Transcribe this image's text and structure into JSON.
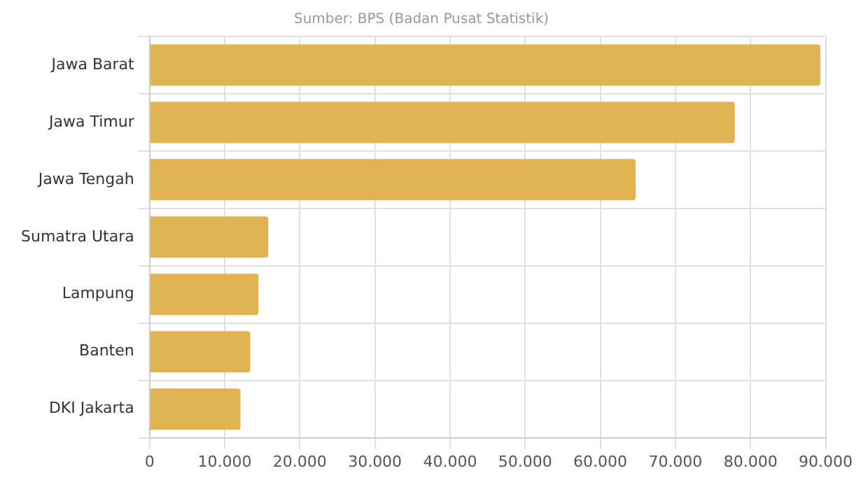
{
  "chart_data": {
    "type": "bar",
    "orientation": "horizontal",
    "subtitle": "Sumber: BPS (Badan Pusat Statistik)",
    "categories": [
      "Jawa Barat",
      "Jawa Timur",
      "Jawa Tengah",
      "Sumatra Utara",
      "Lampung",
      "Banten",
      "DKI Jakarta"
    ],
    "values": [
      89300,
      77900,
      64700,
      15800,
      14500,
      13400,
      12100
    ],
    "color": "#e0b452",
    "xlim": [
      0,
      90000
    ],
    "xticks": [
      {
        "value": 0,
        "label": "0"
      },
      {
        "value": 10000,
        "label": "10.000"
      },
      {
        "value": 20000,
        "label": "20.000"
      },
      {
        "value": 30000,
        "label": "30.000"
      },
      {
        "value": 40000,
        "label": "40.000"
      },
      {
        "value": 50000,
        "label": "50.000"
      },
      {
        "value": 60000,
        "label": "60.000"
      },
      {
        "value": 70000,
        "label": "70.000"
      },
      {
        "value": 80000,
        "label": "80.000"
      },
      {
        "value": 90000,
        "label": "90.000"
      }
    ],
    "grid": true,
    "legend": false
  }
}
